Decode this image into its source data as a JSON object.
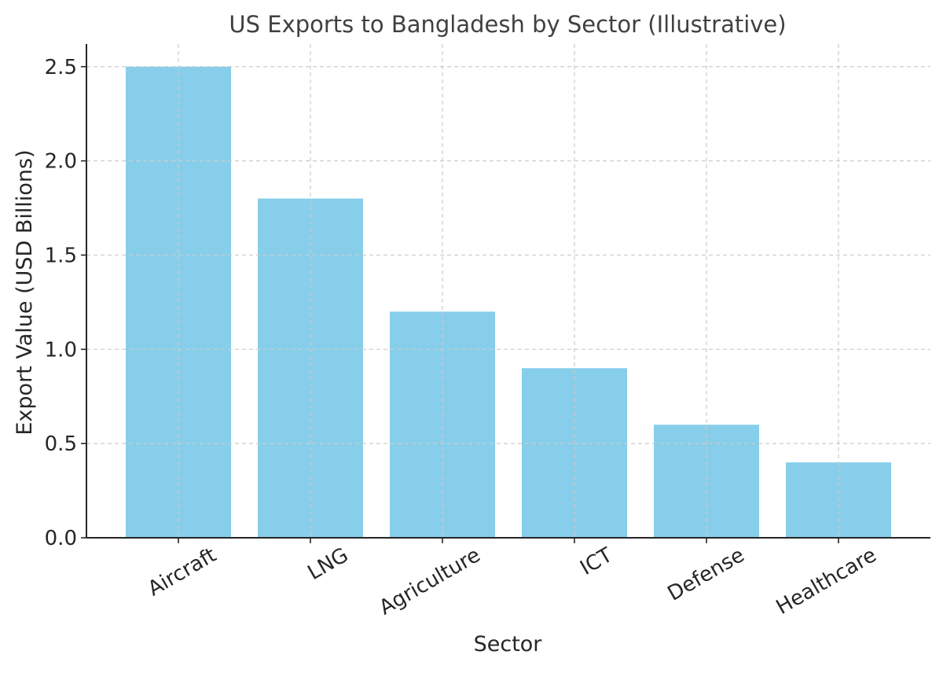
{
  "chart_data": {
    "type": "bar",
    "title": "US Exports to Bangladesh by Sector (Illustrative)",
    "xlabel": "Sector",
    "ylabel": "Export Value (USD Billions)",
    "categories": [
      "Aircraft",
      "LNG",
      "Agriculture",
      "ICT",
      "Defense",
      "Healthcare"
    ],
    "values": [
      2.5,
      1.8,
      1.2,
      0.9,
      0.6,
      0.4
    ],
    "ylim": [
      0,
      2.62
    ],
    "yticks": [
      "0.0",
      "0.5",
      "1.0",
      "1.5",
      "2.0",
      "2.5"
    ],
    "grid": true,
    "legend": "none",
    "bar_color": "#87ceeb",
    "grid_color": "#cccccc",
    "axis_color": "#262626"
  }
}
